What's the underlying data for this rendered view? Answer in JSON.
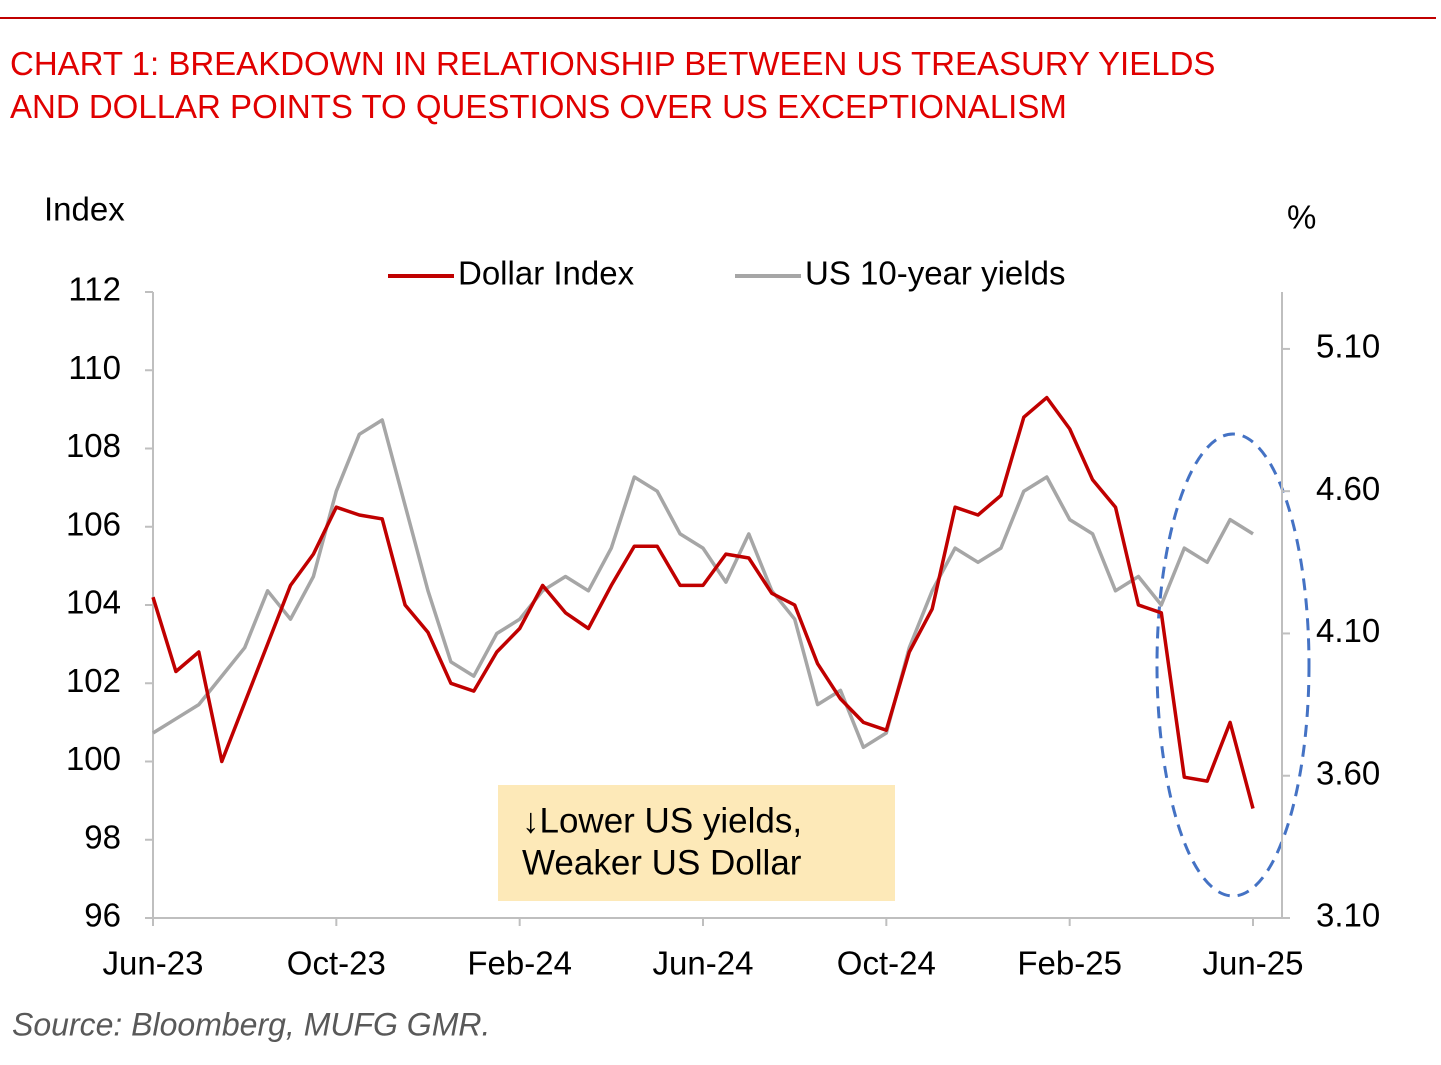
{
  "chart_data": {
    "type": "line",
    "title": "CHART 1: BREAKDOWN IN RELATIONSHIP BETWEEN US TREASURY YIELDS AND DOLLAR POINTS TO QUESTIONS OVER US EXCEPTIONALISM",
    "y_label": "Index",
    "y2_label": "%",
    "source": "Source: Bloomberg, MUFG GMR.",
    "annotations": [
      "↓Lower US yields,",
      "Weaker US Dollar"
    ],
    "categories": [
      "Jun-23",
      null,
      null,
      null,
      null,
      null,
      null,
      null,
      "Oct-23",
      null,
      null,
      null,
      null,
      null,
      null,
      null,
      "Feb-24",
      null,
      null,
      null,
      null,
      null,
      null,
      null,
      "Jun-24",
      null,
      null,
      null,
      null,
      null,
      null,
      null,
      "Oct-24",
      null,
      null,
      null,
      null,
      null,
      null,
      null,
      "Feb-25",
      null,
      null,
      null,
      null,
      null,
      null,
      null,
      "Jun-25"
    ],
    "series": [
      {
        "name": "Dollar Index",
        "color": "#c00000",
        "values": [
          104.2,
          102.3,
          102.8,
          100.0,
          101.5,
          103.0,
          104.5,
          105.3,
          106.5,
          106.3,
          106.2,
          104.0,
          103.3,
          102.0,
          101.8,
          102.8,
          103.4,
          104.5,
          103.8,
          103.4,
          104.5,
          105.5,
          105.5,
          104.5,
          104.5,
          105.3,
          105.2,
          104.3,
          104.0,
          102.5,
          101.6,
          101.0,
          100.8,
          102.8,
          103.9,
          106.5,
          106.3,
          106.8,
          108.8,
          109.3,
          108.5,
          107.2,
          106.5,
          104.0,
          103.8,
          99.6,
          99.5,
          101.0,
          98.8
        ]
      },
      {
        "name": "US 10-year yields",
        "color": "#a6a6a6",
        "axis": "y2",
        "values": [
          3.75,
          3.8,
          3.85,
          3.95,
          4.05,
          4.25,
          4.15,
          4.3,
          4.6,
          4.8,
          4.85,
          4.55,
          4.25,
          4.0,
          3.95,
          4.1,
          4.15,
          4.25,
          4.3,
          4.25,
          4.4,
          4.65,
          4.6,
          4.45,
          4.4,
          4.28,
          4.45,
          4.25,
          4.15,
          3.85,
          3.9,
          3.7,
          3.75,
          4.05,
          4.25,
          4.4,
          4.35,
          4.4,
          4.6,
          4.65,
          4.5,
          4.45,
          4.25,
          4.3,
          4.2,
          4.4,
          4.35,
          4.5,
          4.45
        ]
      }
    ],
    "ylim": [
      96,
      112
    ],
    "yticks": [
      96,
      98,
      100,
      102,
      104,
      106,
      108,
      110,
      112
    ],
    "y2lim": [
      3.1,
      5.3
    ],
    "y2ticks": [
      {
        "value": 3.1,
        "label": "3.10"
      },
      {
        "value": 3.6,
        "label": "3.60"
      },
      {
        "value": 4.1,
        "label": "4.10"
      },
      {
        "value": 4.6,
        "label": "4.60"
      },
      {
        "value": 5.1,
        "label": "5.10"
      }
    ],
    "grid": false,
    "legend": "top"
  }
}
